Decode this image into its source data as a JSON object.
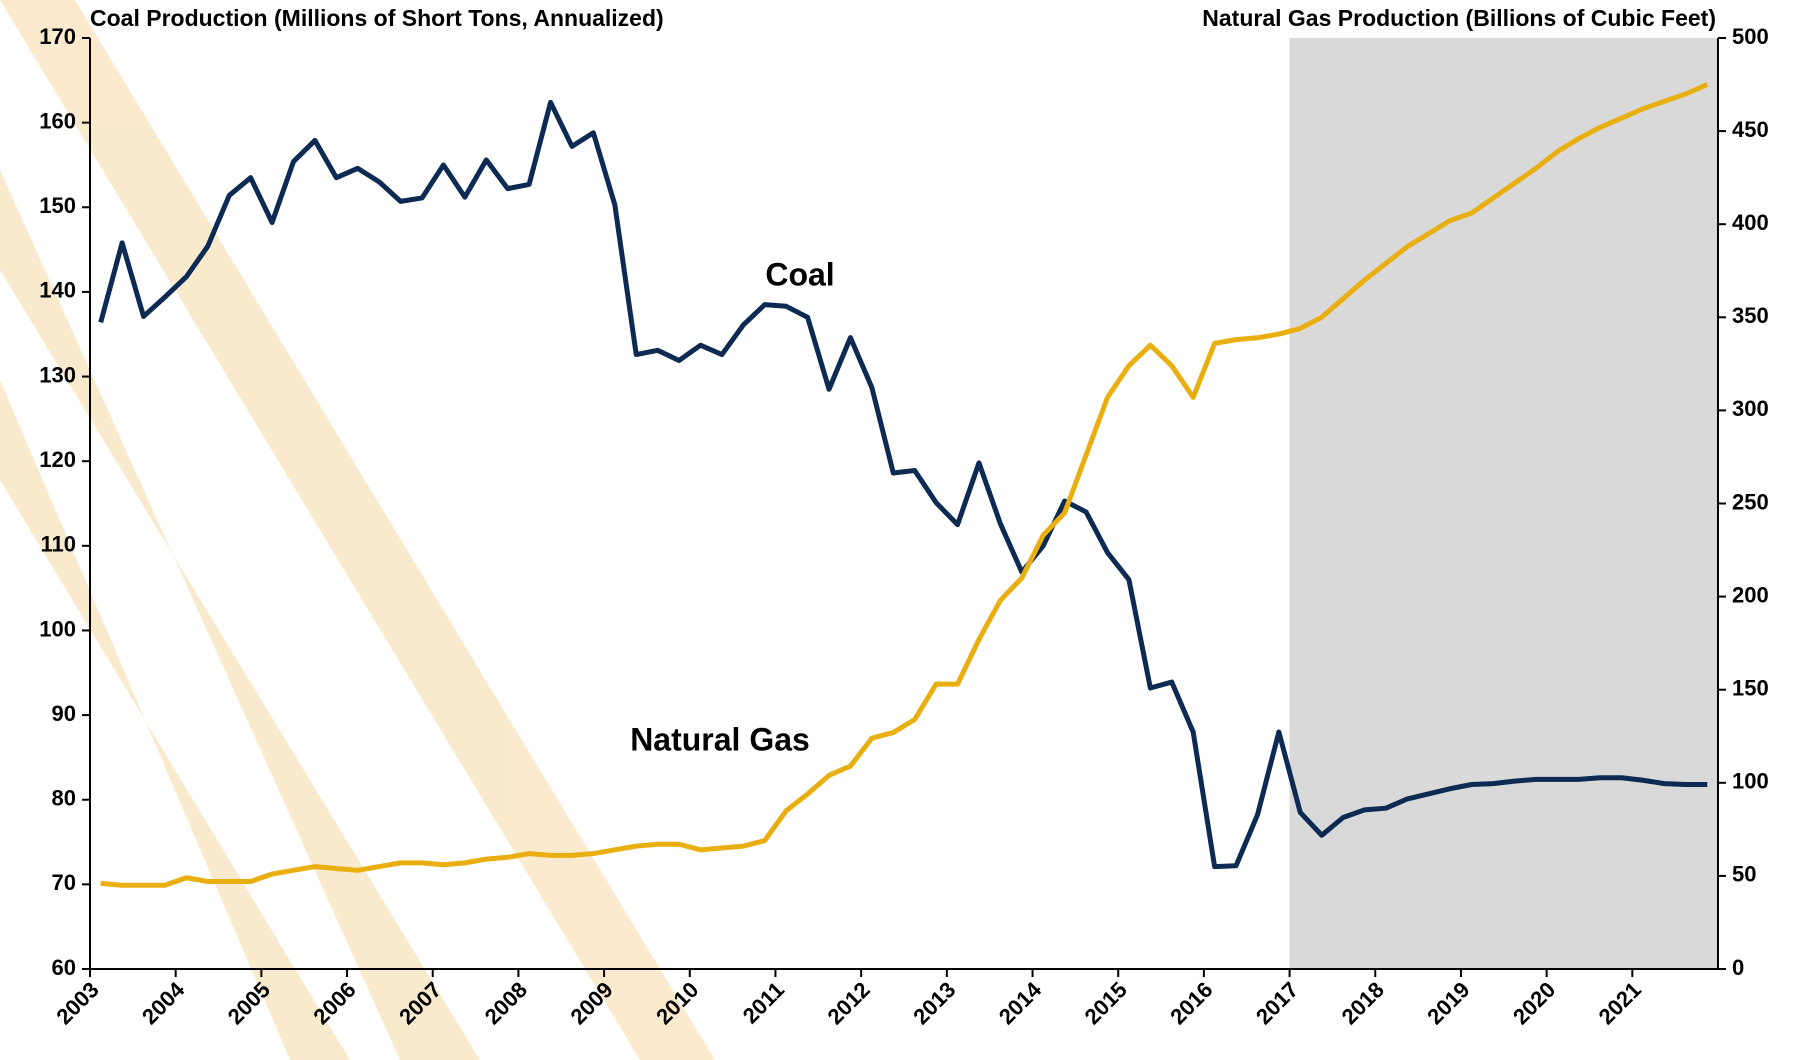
{
  "chart_data": {
    "type": "line",
    "y_label": "Coal Production (Millions of Short Tons, Annualized)",
    "y2_label": "Natural Gas Production (Billions of Cubic Feet)",
    "x": [
      2003.125,
      2003.375,
      2003.625,
      2003.875,
      2004.125,
      2004.375,
      2004.625,
      2004.875,
      2005.125,
      2005.375,
      2005.625,
      2005.875,
      2006.125,
      2006.375,
      2006.625,
      2006.875,
      2007.125,
      2007.375,
      2007.625,
      2007.875,
      2008.125,
      2008.375,
      2008.625,
      2008.875,
      2009.125,
      2009.375,
      2009.625,
      2009.875,
      2010.125,
      2010.375,
      2010.625,
      2010.875,
      2011.125,
      2011.375,
      2011.625,
      2011.875,
      2012.125,
      2012.375,
      2012.625,
      2012.875,
      2013.125,
      2013.375,
      2013.625,
      2013.875,
      2014.125,
      2014.375,
      2014.625,
      2014.875,
      2015.125,
      2015.375,
      2015.625,
      2015.875,
      2016.125,
      2016.375,
      2016.625,
      2016.875,
      2017.125,
      2017.375,
      2017.625,
      2017.875,
      2018.125,
      2018.375,
      2018.625,
      2018.875,
      2019.125,
      2019.375,
      2019.625,
      2019.875,
      2020.125,
      2020.375,
      2020.625,
      2020.875,
      2021.125,
      2021.375,
      2021.625,
      2021.875
    ],
    "xlim": [
      2003,
      2022
    ],
    "xticks": [
      2003,
      2004,
      2005,
      2006,
      2007,
      2008,
      2009,
      2010,
      2011,
      2012,
      2013,
      2014,
      2015,
      2016,
      2017,
      2018,
      2019,
      2020,
      2021
    ],
    "ylim": [
      60,
      170
    ],
    "yticks": [
      60,
      70,
      80,
      90,
      100,
      110,
      120,
      130,
      140,
      150,
      160,
      170
    ],
    "y2lim": [
      0,
      500
    ],
    "y2ticks": [
      0,
      50,
      100,
      150,
      200,
      250,
      300,
      350,
      400,
      450,
      500
    ],
    "series": [
      {
        "name": "Coal",
        "color": "#0c2a52",
        "values": [
          136.4,
          145.8,
          137.1,
          139.4,
          141.8,
          145.4,
          151.4,
          153.5,
          148.2,
          155.4,
          157.9,
          153.5,
          154.6,
          153.0,
          150.7,
          151.1,
          155.0,
          151.2,
          155.6,
          152.2,
          152.7,
          162.4,
          157.2,
          158.8,
          150.3,
          132.6,
          133.1,
          131.9,
          133.7,
          132.6,
          136.1,
          138.5,
          138.3,
          137.0,
          128.5,
          134.6,
          128.7,
          118.6,
          118.9,
          115.1,
          112.5,
          119.8,
          112.6,
          106.9,
          110.0,
          115.3,
          114.0,
          109.2,
          106.0,
          93.2,
          93.9,
          88.0,
          72.1,
          72.2,
          78.2,
          88.0,
          78.5,
          75.8,
          77.9,
          78.8,
          79.0,
          80.1,
          80.7,
          81.3,
          81.8,
          81.9,
          82.2,
          82.4,
          82.4,
          82.4,
          82.6,
          82.6,
          82.3,
          81.9,
          81.8,
          81.8
        ]
      },
      {
        "name": "Natural Gas",
        "color": "#e9ae0f",
        "axis": "y2",
        "values": [
          46,
          45,
          45,
          45,
          49,
          47,
          47,
          47,
          51,
          53,
          55,
          54,
          53,
          55,
          57,
          57,
          56,
          57,
          59,
          60,
          62,
          61,
          61,
          62,
          64,
          66,
          67,
          67,
          64,
          65,
          66,
          69,
          85,
          94,
          104,
          109,
          124,
          127,
          134,
          153,
          153,
          177,
          198,
          210,
          233,
          245,
          276,
          307,
          324,
          335,
          324,
          307,
          336,
          338,
          339,
          341,
          344,
          350,
          360,
          370,
          379,
          388,
          395,
          402,
          406,
          414,
          422,
          430,
          439,
          446,
          452,
          457,
          462,
          466,
          470,
          475
        ]
      }
    ],
    "shaded_region": {
      "xlim": [
        2017,
        2022
      ],
      "color": "#d9d9d9"
    }
  }
}
